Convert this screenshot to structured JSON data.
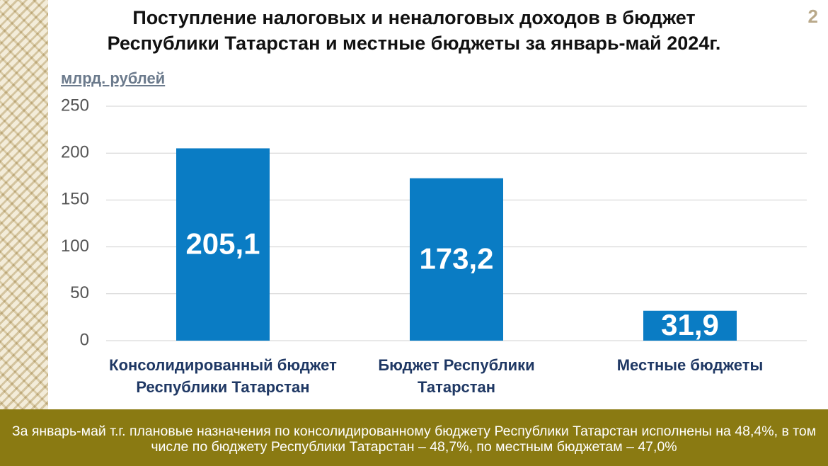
{
  "page_number": "2",
  "chart_data": {
    "type": "bar",
    "title": [
      "Поступление налоговых и неналоговых доходов в бюджет",
      "Республики Татарстан и местные бюджеты за январь-май 2024г."
    ],
    "y_label": "млрд. рублей",
    "categories": [
      "Консолидированный бюджет Республики Татарстан",
      "Бюджет Республики Татарстан",
      "Местные бюджеты"
    ],
    "values": [
      205.1,
      173.2,
      31.9
    ],
    "value_labels": [
      "205,1",
      "173,2",
      "31,9"
    ],
    "color": "#0a7cc4",
    "ylim": [
      0,
      250
    ],
    "yticks": [
      0,
      50,
      100,
      150,
      200,
      250
    ],
    "grid": true
  },
  "footer": "За январь-май т.г. плановые назначения по консолидированному бюджету Республики Татарстан исполнены на 48,4%, в том числе по бюджету Республики Татарстан – 48,7%, по местным бюджетам – 47,0%"
}
